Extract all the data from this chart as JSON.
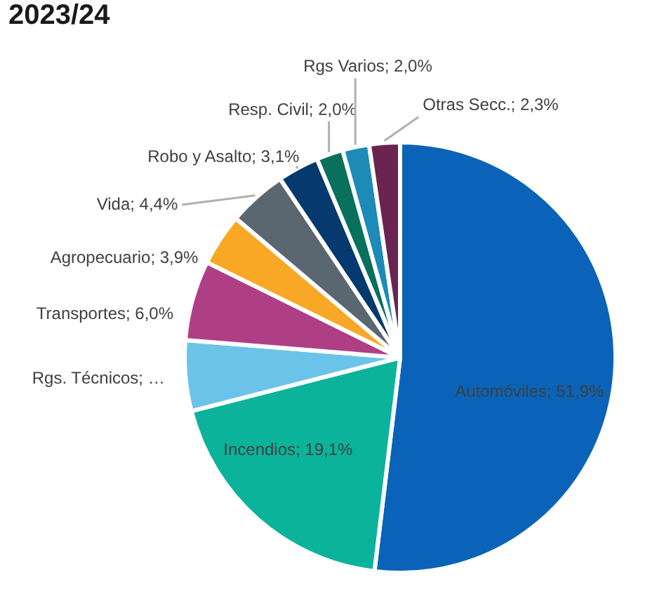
{
  "chart_data": {
    "type": "pie",
    "title": "2023/24",
    "categories": [
      "Automóviles",
      "Incendios",
      "Rgs. Técnicos",
      "Transportes",
      "Agropecuario",
      "Vida",
      "Robo y Asalto",
      "Resp. Civil",
      "Rgs Varios",
      "Otras Secc."
    ],
    "values": [
      51.9,
      19.1,
      5.3,
      6.0,
      3.9,
      4.4,
      3.1,
      2.0,
      2.0,
      2.3
    ],
    "value_labels": [
      "51,9%",
      "19,1%",
      "…",
      "6,0%",
      "3,9%",
      "4,4%",
      "3,1%",
      "2,0%",
      "2,0%",
      "2,3%"
    ],
    "colors": [
      "#0a63b8",
      "#0bb39a",
      "#6cc3ea",
      "#ae3f85",
      "#f9a825",
      "#5b6770",
      "#063a6e",
      "#08705c",
      "#1d8ab8",
      "#6a2450"
    ],
    "legend": false
  }
}
